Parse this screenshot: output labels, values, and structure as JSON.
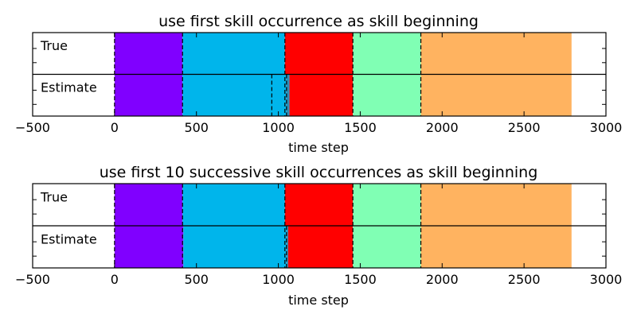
{
  "chart_data": [
    {
      "type": "timeline",
      "title": "use first skill occurrence as skill beginning",
      "xlabel": "time step",
      "xlim": [
        -500,
        3000
      ],
      "xticks": [
        -500,
        0,
        500,
        1000,
        1500,
        2000,
        2500,
        3000
      ],
      "xtick_labels": [
        "−500",
        "0",
        "500",
        "1000",
        "1500",
        "2000",
        "2500",
        "3000"
      ],
      "rows": [
        {
          "label": "True",
          "segments": [
            {
              "start": 0,
              "end": 415,
              "color": "#8000ff"
            },
            {
              "start": 415,
              "end": 1040,
              "color": "#00b5eb"
            },
            {
              "start": 1040,
              "end": 1455,
              "color": "#ff0000"
            },
            {
              "start": 1455,
              "end": 1870,
              "color": "#80ffb4"
            },
            {
              "start": 1870,
              "end": 2790,
              "color": "#ffb360"
            }
          ]
        },
        {
          "label": "Estimate",
          "segments": [
            {
              "start": 0,
              "end": 415,
              "color": "#8000ff"
            },
            {
              "start": 415,
              "end": 1050,
              "color": "#00b5eb"
            },
            {
              "start": 1050,
              "end": 1068,
              "color": "#2f8fb8"
            },
            {
              "start": 1068,
              "end": 1455,
              "color": "#ff0000"
            },
            {
              "start": 1455,
              "end": 1870,
              "color": "#80ffb4"
            },
            {
              "start": 1870,
              "end": 2790,
              "color": "#ffb360"
            }
          ]
        }
      ],
      "boundaries": [
        0,
        415,
        1040,
        1455,
        1870
      ],
      "estimate_extra_boundaries": [
        960,
        1050
      ]
    },
    {
      "type": "timeline",
      "title": "use first 10 successive skill occurrences as skill beginning",
      "xlabel": "time step",
      "xlim": [
        -500,
        3000
      ],
      "xticks": [
        -500,
        0,
        500,
        1000,
        1500,
        2000,
        2500,
        3000
      ],
      "xtick_labels": [
        "−500",
        "0",
        "500",
        "1000",
        "1500",
        "2000",
        "2500",
        "3000"
      ],
      "rows": [
        {
          "label": "True",
          "segments": [
            {
              "start": 0,
              "end": 415,
              "color": "#8000ff"
            },
            {
              "start": 415,
              "end": 1040,
              "color": "#00b5eb"
            },
            {
              "start": 1040,
              "end": 1455,
              "color": "#ff0000"
            },
            {
              "start": 1455,
              "end": 1870,
              "color": "#80ffb4"
            },
            {
              "start": 1870,
              "end": 2790,
              "color": "#ffb360"
            }
          ]
        },
        {
          "label": "Estimate",
          "segments": [
            {
              "start": 0,
              "end": 420,
              "color": "#8000ff"
            },
            {
              "start": 420,
              "end": 1050,
              "color": "#00b5eb"
            },
            {
              "start": 1050,
              "end": 1060,
              "color": "#2f8fb8"
            },
            {
              "start": 1060,
              "end": 1455,
              "color": "#ff0000"
            },
            {
              "start": 1455,
              "end": 1870,
              "color": "#80ffb4"
            },
            {
              "start": 1870,
              "end": 2790,
              "color": "#ffb360"
            }
          ]
        }
      ],
      "boundaries": [
        0,
        415,
        1040,
        1455,
        1870
      ],
      "estimate_extra_boundaries": [
        1050
      ]
    }
  ]
}
